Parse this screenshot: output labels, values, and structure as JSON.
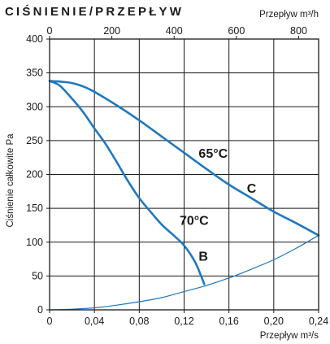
{
  "chart_data": {
    "type": "line",
    "title": "CIŚNIENIE/PRZEPŁYW",
    "ylabel": "Ciśnienie całkowite Pa",
    "xlabel_bottom": "Przepływ m³/s",
    "xlabel_top": "Przepływ m³/h",
    "x_bottom_ticks": [
      "0",
      "0,04",
      "0,08",
      "0,12",
      "0,16",
      "0,20",
      "0,24"
    ],
    "x_top_ticks": [
      "0",
      "200",
      "400",
      "600",
      "800"
    ],
    "y_ticks": [
      "0",
      "50",
      "100",
      "150",
      "200",
      "250",
      "300",
      "350",
      "400"
    ],
    "xlim": [
      0,
      0.24
    ],
    "ylim": [
      0,
      400
    ],
    "top_axis_per_m3s": 3600,
    "grid": true,
    "colors": {
      "curve": "#1f78bf",
      "grid": "#1a1a1a"
    },
    "series": [
      {
        "name": "C",
        "x": [
          0,
          0.01,
          0.02,
          0.03,
          0.04,
          0.06,
          0.08,
          0.1,
          0.12,
          0.14,
          0.16,
          0.18,
          0.2,
          0.22,
          0.24
        ],
        "y": [
          338,
          337,
          335,
          330,
          322,
          302,
          280,
          256,
          232,
          208,
          185,
          165,
          145,
          128,
          110
        ]
      },
      {
        "name": "B",
        "x": [
          0,
          0.005,
          0.01,
          0.02,
          0.03,
          0.04,
          0.05,
          0.06,
          0.07,
          0.08,
          0.09,
          0.1,
          0.11,
          0.12,
          0.13,
          0.138
        ],
        "y": [
          338,
          335,
          330,
          312,
          292,
          268,
          245,
          218,
          190,
          165,
          145,
          126,
          111,
          95,
          70,
          38
        ]
      },
      {
        "name": "",
        "x": [
          0,
          0.02,
          0.04,
          0.06,
          0.08,
          0.1,
          0.12,
          0.14,
          0.16,
          0.18,
          0.2,
          0.22,
          0.24
        ],
        "y": [
          0,
          1,
          3,
          7,
          12,
          18,
          27,
          36,
          47,
          60,
          74,
          91,
          110
        ]
      }
    ],
    "annotations": [
      {
        "text": "65°C",
        "x": 0.133,
        "y": 232
      },
      {
        "text": "C",
        "x": 0.176,
        "y": 180
      },
      {
        "text": "70°C",
        "x": 0.116,
        "y": 133
      },
      {
        "text": "B",
        "x": 0.133,
        "y": 80
      }
    ]
  }
}
